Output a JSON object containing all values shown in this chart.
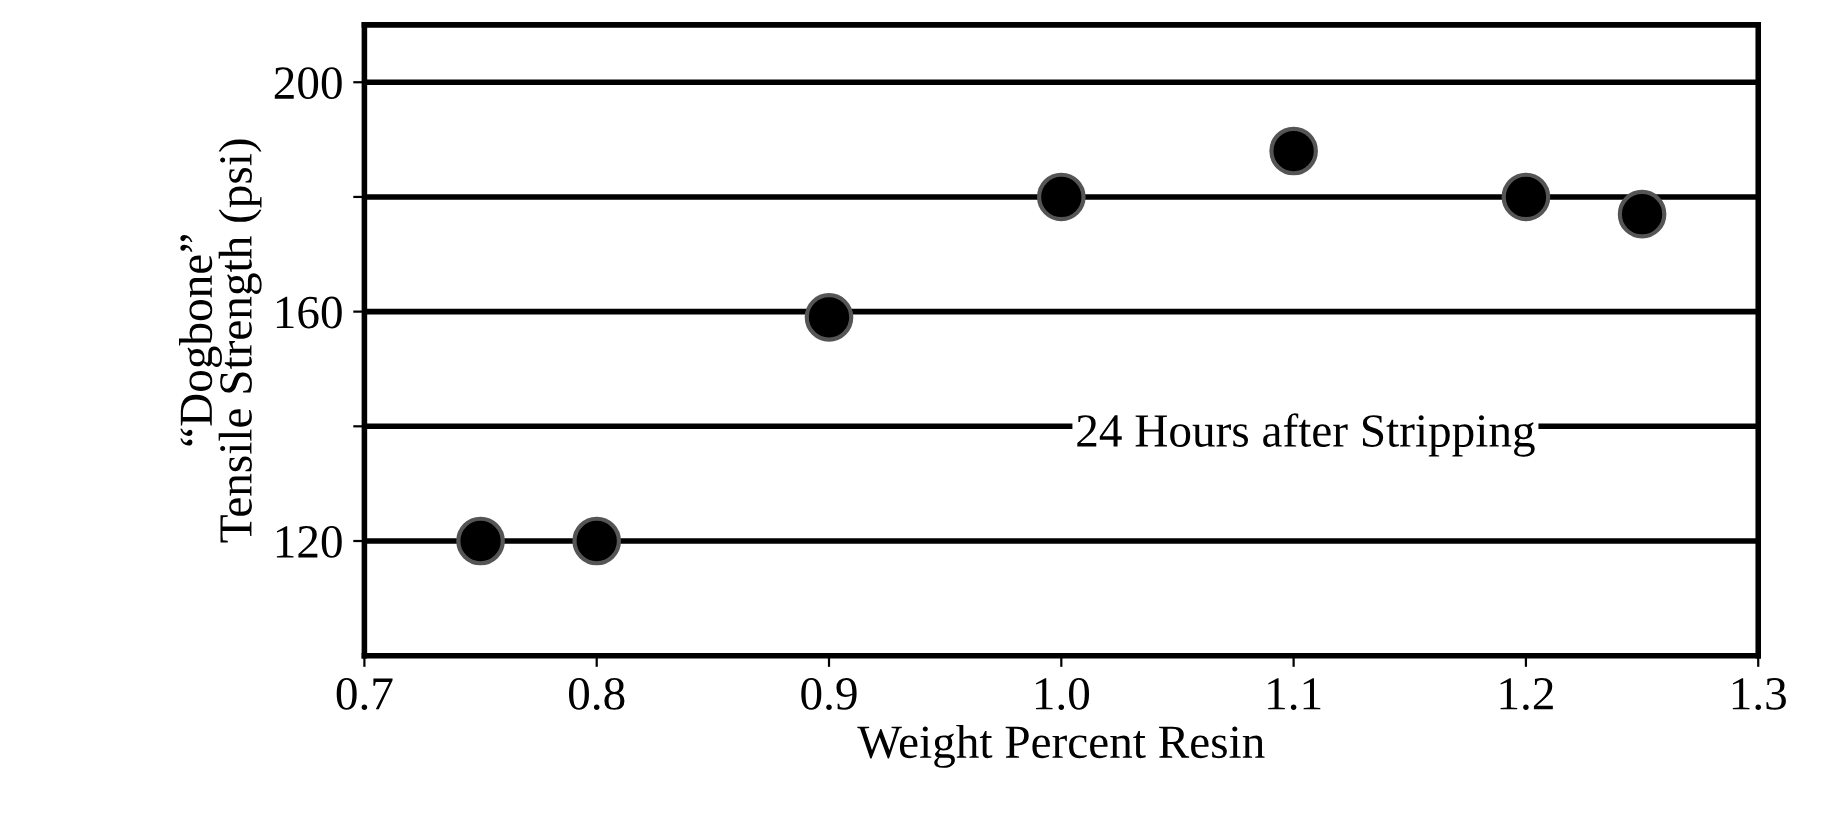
{
  "chart_data": {
    "type": "scatter",
    "xlabel": "Weight Percent Resin",
    "ylabel": "“Dogbone”\nTensile Strength (psi)",
    "x": [
      0.75,
      0.8,
      0.9,
      1.0,
      1.1,
      1.2,
      1.25
    ],
    "series": [
      {
        "color": "#000000",
        "values": [
          120,
          120,
          159,
          180,
          188,
          180,
          177
        ]
      }
    ],
    "xlim": [
      0.7,
      1.3
    ],
    "xticks": [
      {
        "value": 0.7,
        "label": "0.7"
      },
      {
        "value": 0.8,
        "label": "0.8"
      },
      {
        "value": 0.9,
        "label": "0.9"
      },
      {
        "value": 1.0,
        "label": "1.0"
      },
      {
        "value": 1.1,
        "label": "1.1"
      },
      {
        "value": 1.2,
        "label": "1.2"
      },
      {
        "value": 1.3,
        "label": "1.3"
      }
    ],
    "ylim": [
      100,
      210
    ],
    "yticks": [
      120,
      {
        "value": 140,
        "label": null
      },
      160,
      {
        "value": 180,
        "label": null
      },
      200
    ],
    "grid": "y",
    "marker": "circle",
    "annotations": [
      "24 Hours after Stripping"
    ]
  }
}
